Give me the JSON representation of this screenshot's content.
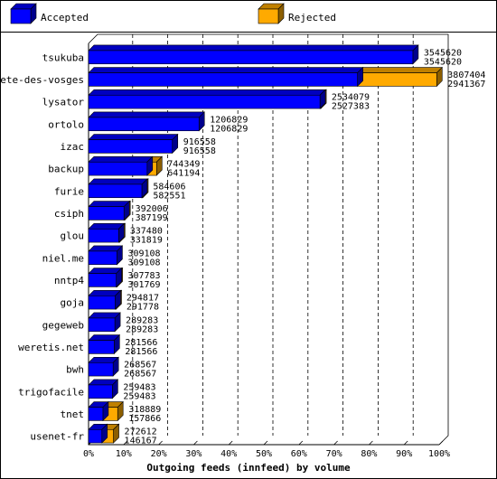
{
  "chart_data": {
    "type": "bar",
    "orientation": "horizontal",
    "stacked": true,
    "xlabel": "Outgoing feeds (innfeed) by volume",
    "x_ticks": [
      "0%",
      "10%",
      "20%",
      "30%",
      "40%",
      "50%",
      "60%",
      "70%",
      "80%",
      "90%",
      "100%"
    ],
    "xlim": [
      0,
      100
    ],
    "legend": [
      {
        "name": "Accepted",
        "color": "#0000ff"
      },
      {
        "name": "Rejected",
        "color": "#ffaa00"
      }
    ],
    "legend_placement": "top",
    "grid": "vertical dashed",
    "categories": [
      "tsukuba",
      "bete-des-vosges",
      "lysator",
      "ortolo",
      "izac",
      "backup",
      "furie",
      "csiph",
      "glou",
      "niel.me",
      "nntp4",
      "goja",
      "gegeweb",
      "weretis.net",
      "bwh",
      "trigofacile",
      "tnet",
      "usenet-fr"
    ],
    "offered": [
      3545620,
      3807404,
      2534079,
      1206829,
      916558,
      744349,
      584606,
      392006,
      337480,
      309108,
      307783,
      294817,
      289283,
      281566,
      268567,
      259483,
      318889,
      272612
    ],
    "accepted": [
      3545620,
      2941367,
      2527383,
      1206829,
      916558,
      641194,
      582551,
      387199,
      331819,
      309108,
      301769,
      291778,
      289283,
      281566,
      268567,
      259483,
      157866,
      146167
    ],
    "series": [
      {
        "name": "Accepted",
        "percent": [
          92.5,
          76.7,
          66.0,
          31.5,
          23.9,
          16.7,
          15.2,
          10.1,
          8.6,
          8.1,
          7.9,
          7.6,
          7.5,
          7.3,
          7.0,
          6.8,
          4.1,
          3.8
        ]
      },
      {
        "name": "Rejected",
        "percent": [
          0.0,
          22.6,
          0.2,
          0.0,
          0.0,
          2.7,
          0.1,
          0.1,
          0.1,
          0.0,
          0.2,
          0.1,
          0.0,
          0.0,
          0.0,
          0.0,
          4.2,
          3.3
        ]
      }
    ]
  }
}
